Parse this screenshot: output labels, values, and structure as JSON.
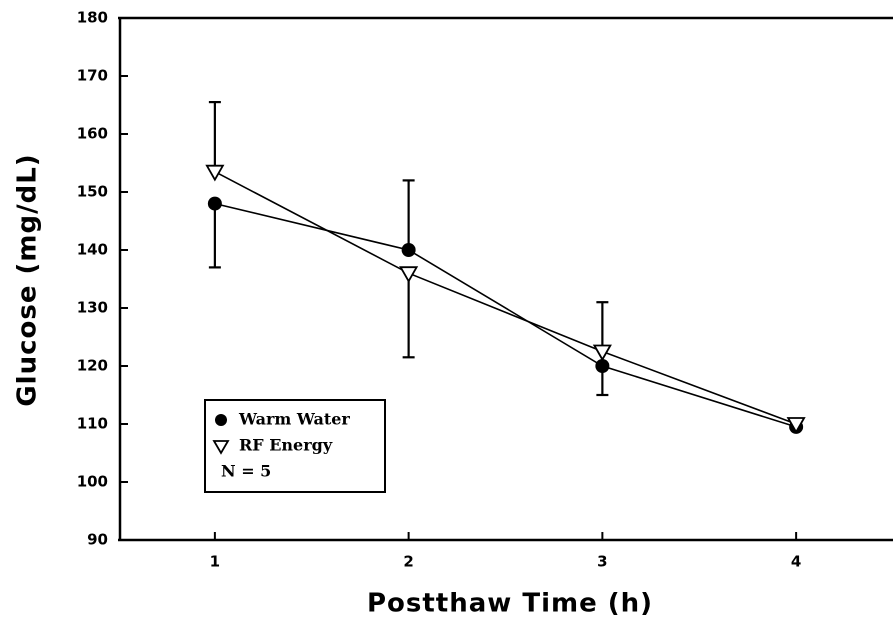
{
  "chart_data": {
    "type": "line",
    "x_label": "Postthaw Time (h)",
    "y_label": "Glucose (mg/dL)",
    "x": [
      1,
      2,
      3,
      4
    ],
    "series": [
      {
        "name": "Warm Water",
        "color": "#000000",
        "marker": "filled-circle",
        "values": [
          148,
          140,
          120,
          109.5
        ],
        "errors": [
          11,
          12,
          5,
          null
        ]
      },
      {
        "name": "RF Energy",
        "color": "#000000",
        "marker": "open-triangle-down",
        "values": [
          153.5,
          136,
          122.5,
          110
        ],
        "errors": [
          12,
          14.5,
          8.5,
          null
        ]
      }
    ],
    "annotation": "N = 5",
    "xlim": [
      0.5,
      4.5
    ],
    "xticks": [
      1,
      2,
      3,
      4
    ],
    "ylim": [
      90,
      180
    ],
    "yticks": [
      90,
      100,
      110,
      120,
      130,
      140,
      150,
      160,
      170,
      180
    ],
    "legend": "lower left",
    "grid": false
  }
}
